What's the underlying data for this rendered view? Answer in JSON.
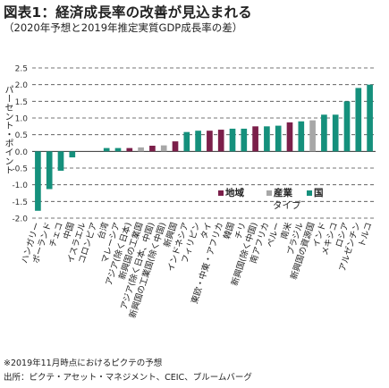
{
  "title": "図表1：経済成長率の改善が見込まれる",
  "subtitle": "（2020年予想と2019年推定実質GDP成長率の差）",
  "note": "※2019年11月時点におけるピクテの予想",
  "source": "出所：ピクテ・アセット・マネジメント、CEIC、ブルームバーグ",
  "colors": {
    "region": "#7b1f4a",
    "industry": "#a7a7a7",
    "country": "#15907c",
    "grid": "#4a4a4a"
  },
  "chart_data": {
    "type": "bar",
    "ylabel": "パーセント・ポイント",
    "ylim": [
      -2.0,
      2.5
    ],
    "yticks": [
      "-2.0",
      "-1.5",
      "-1.0",
      "-0.5",
      "0.0",
      "0.5",
      "1.0",
      "1.5",
      "2.0",
      "2.5"
    ],
    "grid": true,
    "legend": {
      "placement": "center-right",
      "items": [
        {
          "label": "地域",
          "type": "region"
        },
        {
          "label": "産業",
          "type": "industry"
        },
        {
          "label": "国",
          "type": "country"
        }
      ],
      "group_label": "タイプ"
    },
    "categories": [
      "ハンガリー",
      "ポーランド",
      "チェコ",
      "中国",
      "イスラエル",
      "コロンビア",
      "台湾",
      "マレーシア",
      "アジア(除く日本)",
      "新興国の工業国",
      "アジア(除く日本、中国)",
      "新興国の工業国(除く中国)",
      "新興国",
      "インドネシア",
      "フィリピン",
      "タイ",
      "東欧・中東・アフリカ",
      "韓国",
      "チリ",
      "新興国(除く中国)",
      "南アフリカ",
      "ペルー",
      "南米",
      "ブラジル",
      "新興国の資源国",
      "インド",
      "メキシコ",
      "ロシア",
      "アルゼンチン",
      "トルコ"
    ],
    "types": [
      "country",
      "country",
      "country",
      "country",
      "country",
      "country",
      "country",
      "country",
      "region",
      "industry",
      "region",
      "industry",
      "region",
      "country",
      "country",
      "region",
      "region",
      "country",
      "country",
      "region",
      "country",
      "country",
      "region",
      "country",
      "industry",
      "country",
      "country",
      "country",
      "country",
      "country"
    ],
    "values": [
      -1.78,
      -1.13,
      -0.58,
      -0.18,
      0.0,
      0.0,
      0.1,
      0.1,
      0.1,
      0.12,
      0.17,
      0.18,
      0.3,
      0.58,
      0.62,
      0.62,
      0.65,
      0.68,
      0.68,
      0.75,
      0.75,
      0.77,
      0.87,
      0.9,
      0.93,
      1.1,
      1.1,
      1.5,
      1.9,
      2.0
    ]
  }
}
